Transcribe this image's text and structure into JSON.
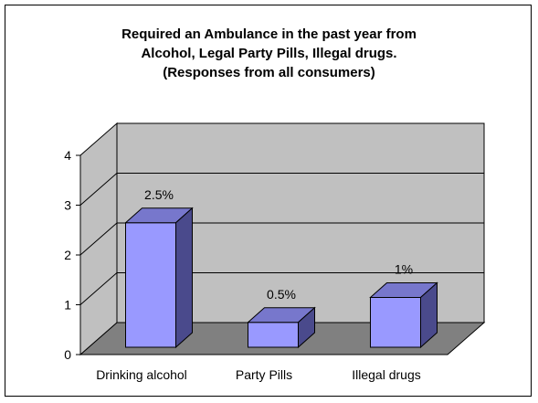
{
  "chart_data": {
    "type": "bar",
    "title": [
      "Required an Ambulance in the past year from",
      "Alcohol, Legal Party Pills, Illegal drugs.",
      "(Responses from all consumers)"
    ],
    "categories": [
      "Drinking alcohol",
      "Party Pills",
      "Illegal drugs"
    ],
    "values": [
      2.5,
      0.5,
      1
    ],
    "data_labels": [
      "2.5%",
      "0.5%",
      "1%"
    ],
    "yticks": [
      "0",
      "1",
      "2",
      "3",
      "4"
    ],
    "ylim": [
      0,
      4
    ],
    "xlabel": "",
    "ylabel": "",
    "grid": true,
    "three_d": true,
    "colors": {
      "bar_front": "#9999ff",
      "bar_top": "#7777cc",
      "bar_side": "#4a4a8c",
      "back_wall": "#c0c0c0",
      "side_wall": "#c0c0c0",
      "floor": "#808080",
      "gridline": "#000000"
    }
  }
}
